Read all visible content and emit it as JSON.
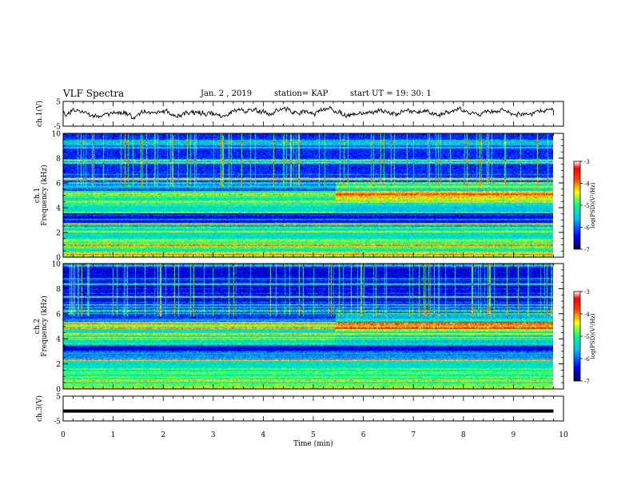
{
  "header": {
    "title": "VLF Spectra",
    "date": "Jan. 2 , 2019",
    "station": "station= KAP",
    "start": "start UT =  19: 30: 1"
  },
  "chart_data": [
    {
      "type": "line",
      "panel": "ch1-waveform",
      "ylabel": "ch.1(V)",
      "ylim": [
        -5,
        5
      ],
      "yticks": [
        "5",
        "-5"
      ],
      "xlim": [
        0,
        10
      ],
      "approx_level": 0.3,
      "approx_amplitude": 1.5
    },
    {
      "type": "heatmap",
      "panel": "ch1-spectrogram",
      "ylabel_top": "ch.1",
      "ylabel": "Frequency (kHz)",
      "ylim": [
        0,
        10
      ],
      "yticks": [
        "0",
        "2",
        "4",
        "6",
        "8",
        "10"
      ],
      "xlim": [
        0,
        9.8
      ],
      "colorbar": {
        "label": "log(PSD)(V²/Hz)",
        "range": [
          -7,
          -3
        ],
        "ticks": [
          "-3",
          "-4",
          "-5",
          "-6",
          "-7"
        ]
      }
    },
    {
      "type": "heatmap",
      "panel": "ch2-spectrogram",
      "ylabel_top": "ch.2",
      "ylabel": "Frequency (kHz)",
      "ylim": [
        0,
        10
      ],
      "yticks": [
        "0",
        "2",
        "4",
        "6",
        "8",
        "10"
      ],
      "xlim": [
        0,
        9.8
      ],
      "colorbar": {
        "label": "log(PSD)(V²/Hz)",
        "range": [
          -7,
          -3
        ],
        "ticks": [
          "-3",
          "-4",
          "-5",
          "-6",
          "-7"
        ]
      }
    },
    {
      "type": "line",
      "panel": "ch3-waveform",
      "ylabel": "ch.3(V)",
      "ylim": [
        -5,
        5
      ],
      "yticks": [
        "5",
        "-5"
      ],
      "xlim": [
        0,
        9.8
      ],
      "constant_value": -1
    }
  ],
  "xaxis": {
    "label": "Time (min)",
    "ticks": [
      "0",
      "1",
      "2",
      "3",
      "4",
      "5",
      "6",
      "7",
      "8",
      "9",
      "10"
    ],
    "range": [
      0,
      10
    ]
  },
  "colors": {
    "background": "#ffffff",
    "axes": "#000000",
    "colormap": [
      "#000080",
      "#0000ff",
      "#0080ff",
      "#00ffff",
      "#80ff80",
      "#ffff00",
      "#ff8000",
      "#ff0000",
      "#ffffff"
    ]
  }
}
